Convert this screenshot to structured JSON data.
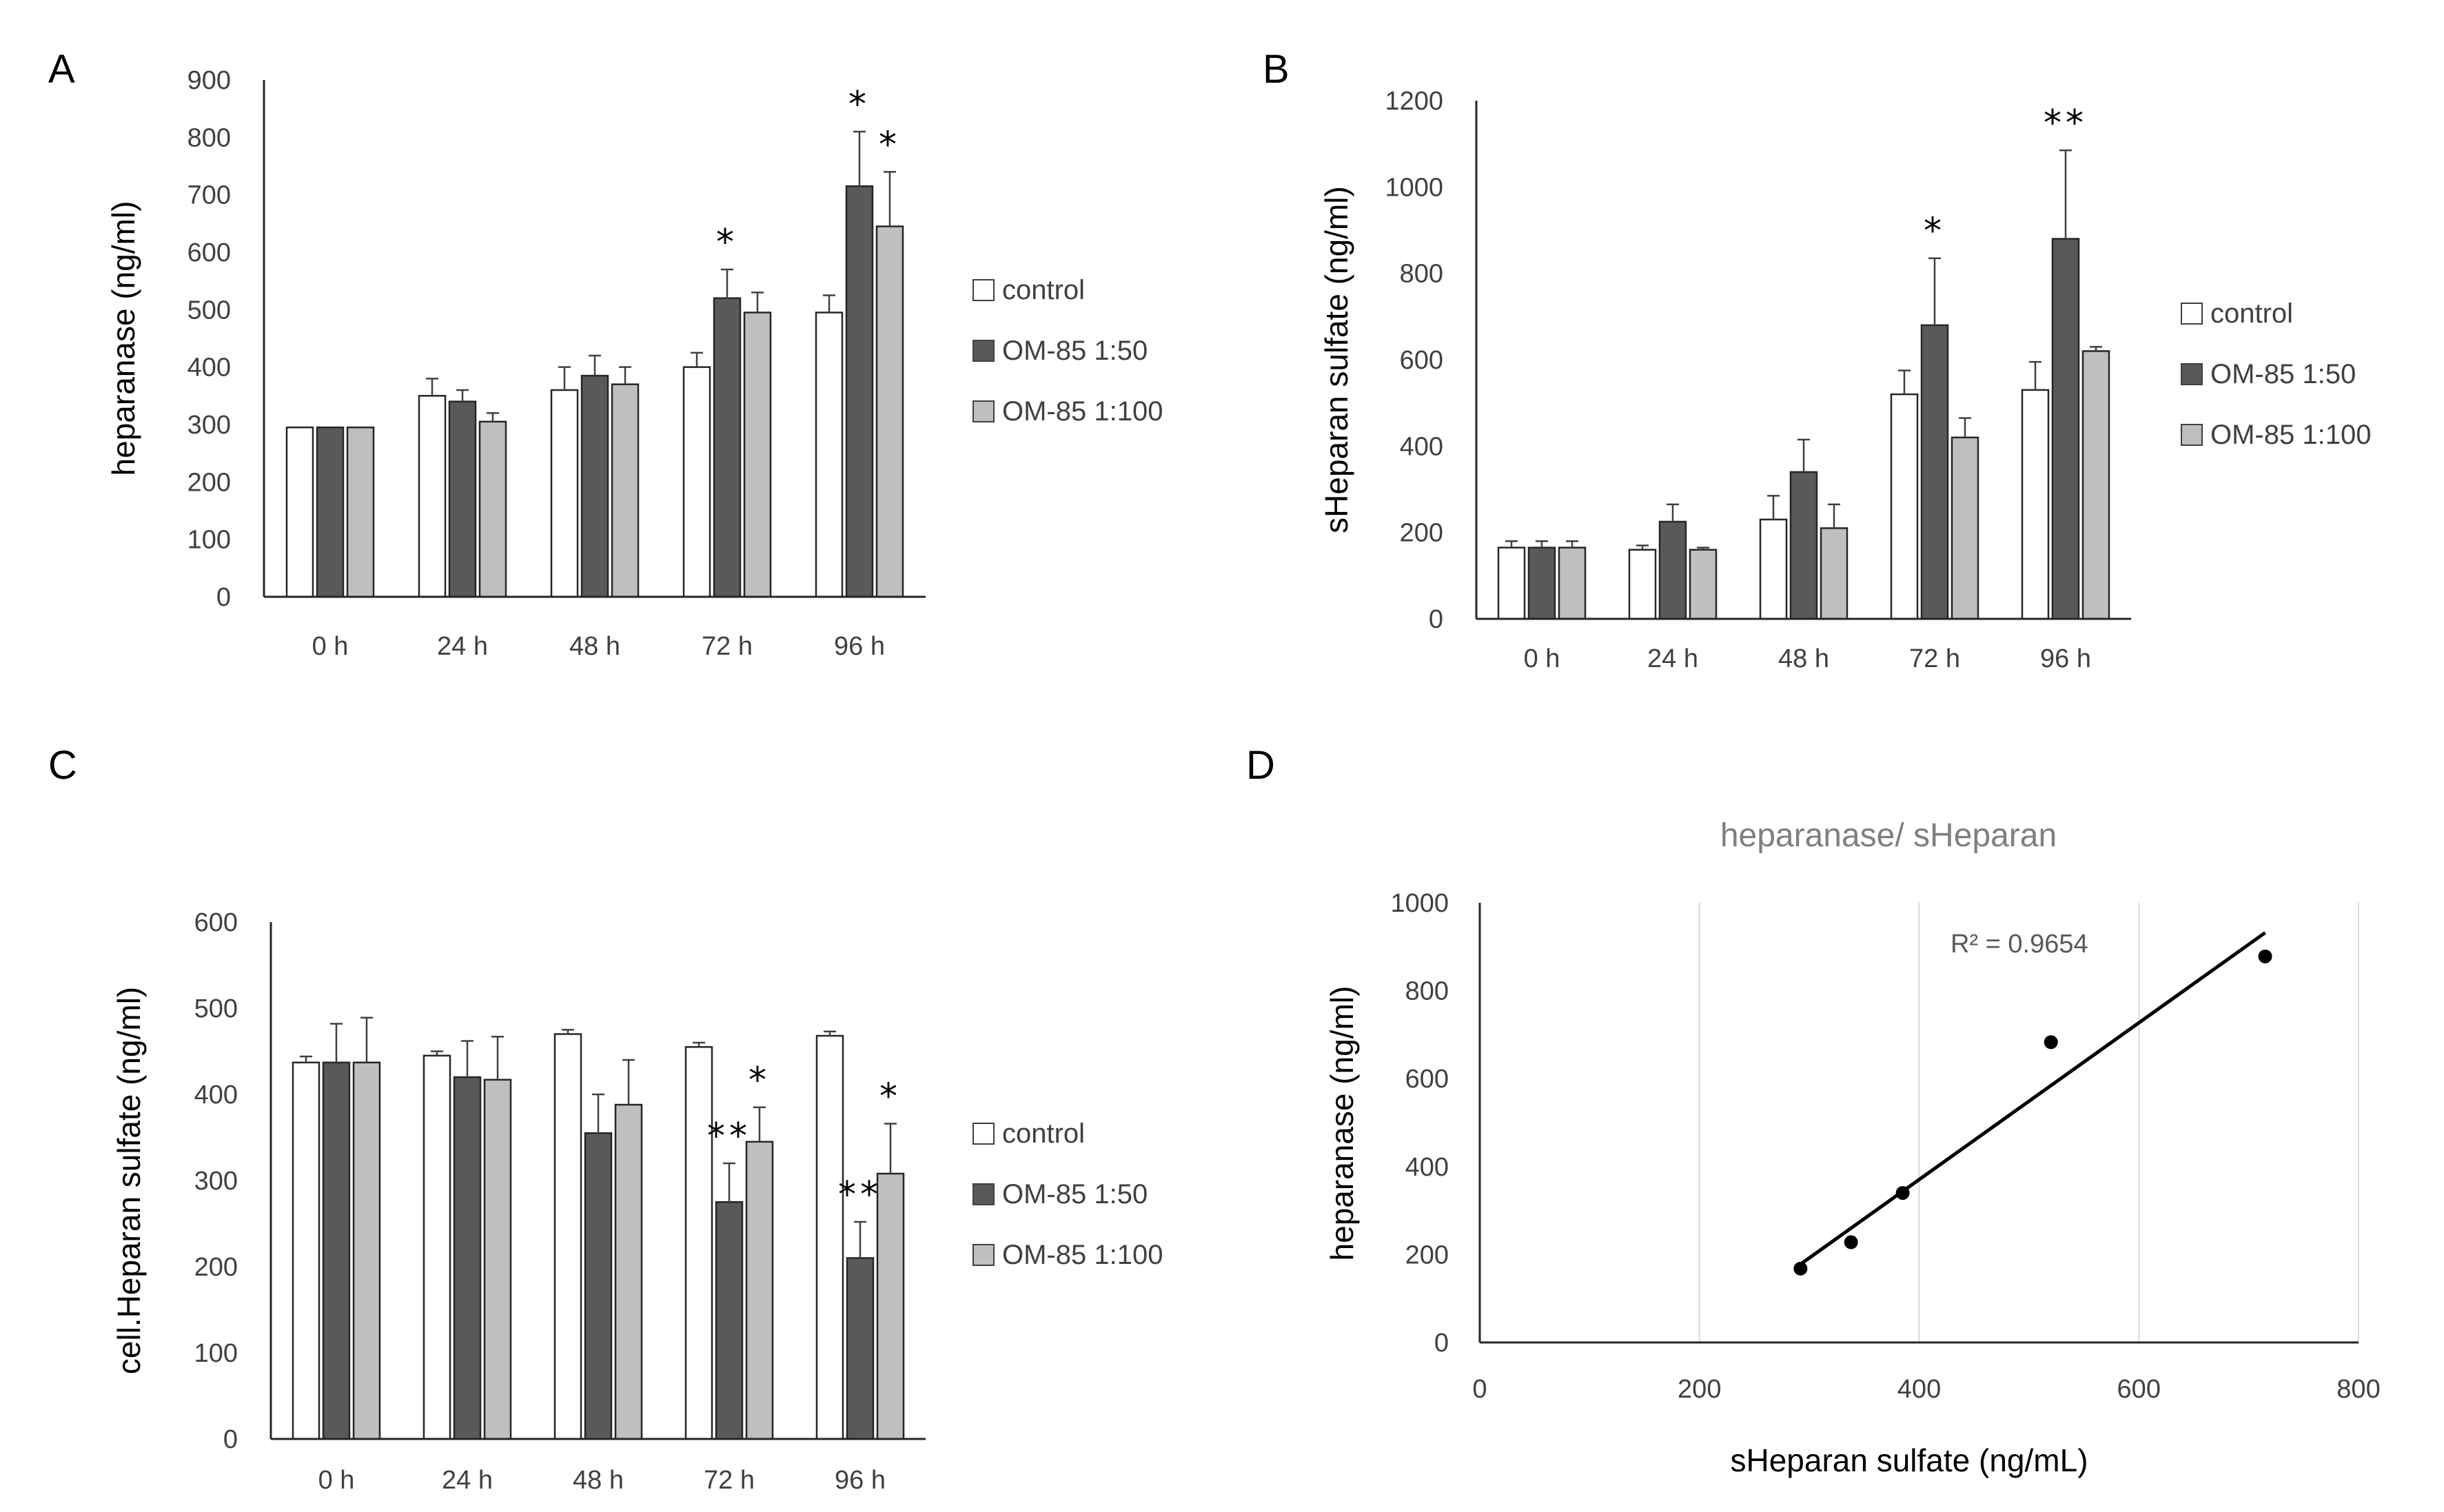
{
  "series_colors": {
    "control": "#ffffff",
    "OM-85 1:50": "#595959",
    "OM-85 1:100": "#bfbfbf"
  },
  "chart_data": [
    {
      "panel": "A",
      "type": "bar",
      "ylabel": "heparanase (ng/ml)",
      "categories": [
        "0 h",
        "24 h",
        "48 h",
        "72 h",
        "96 h"
      ],
      "ylim": [
        0,
        900
      ],
      "yticks": [
        0,
        100,
        200,
        300,
        400,
        500,
        600,
        700,
        800,
        900
      ],
      "legend_position": "right",
      "series": [
        {
          "name": "control",
          "values": [
            295,
            350,
            360,
            400,
            495
          ],
          "errors": [
            0,
            30,
            40,
            25,
            30
          ]
        },
        {
          "name": "OM-85 1:50",
          "values": [
            295,
            340,
            385,
            520,
            715
          ],
          "errors": [
            0,
            20,
            35,
            50,
            95
          ]
        },
        {
          "name": "OM-85 1:100",
          "values": [
            295,
            305,
            370,
            495,
            645
          ],
          "errors": [
            0,
            15,
            30,
            35,
            95
          ]
        }
      ],
      "annotations": [
        {
          "text": "*",
          "category": "72 h",
          "series": "OM-85 1:50"
        },
        {
          "text": "*",
          "category": "96 h",
          "series": "OM-85 1:50"
        },
        {
          "text": "*",
          "category": "96 h",
          "series": "OM-85 1:100"
        }
      ]
    },
    {
      "panel": "B",
      "type": "bar",
      "ylabel": "sHeparan sulfate (ng/ml)",
      "categories": [
        "0 h",
        "24 h",
        "48 h",
        "72 h",
        "96 h"
      ],
      "ylim": [
        0,
        1200
      ],
      "yticks": [
        0,
        200,
        400,
        600,
        800,
        1000,
        1200
      ],
      "legend_position": "right",
      "series": [
        {
          "name": "control",
          "values": [
            165,
            160,
            230,
            520,
            530
          ],
          "errors": [
            15,
            10,
            55,
            55,
            65
          ]
        },
        {
          "name": "OM-85 1:50",
          "values": [
            165,
            225,
            340,
            680,
            880
          ],
          "errors": [
            15,
            40,
            75,
            155,
            205
          ]
        },
        {
          "name": "OM-85 1:100",
          "values": [
            165,
            160,
            210,
            420,
            620
          ],
          "errors": [
            15,
            5,
            55,
            45,
            10
          ]
        }
      ],
      "annotations": [
        {
          "text": "*",
          "category": "72 h",
          "series": "OM-85 1:50"
        },
        {
          "text": "**",
          "category": "96 h",
          "series": "OM-85 1:50"
        }
      ]
    },
    {
      "panel": "C",
      "type": "bar",
      "ylabel": "cell.Heparan sulfate (ng/ml)",
      "categories": [
        "0 h",
        "24 h",
        "48 h",
        "72 h",
        "96 h"
      ],
      "ylim": [
        0,
        600
      ],
      "yticks": [
        0,
        100,
        200,
        300,
        400,
        500,
        600
      ],
      "legend_position": "right",
      "series": [
        {
          "name": "control",
          "values": [
            437,
            445,
            470,
            455,
            468
          ],
          "errors": [
            7,
            5,
            5,
            5,
            5
          ]
        },
        {
          "name": "OM-85 1:50",
          "values": [
            437,
            420,
            355,
            275,
            210
          ],
          "errors": [
            45,
            42,
            45,
            45,
            42
          ]
        },
        {
          "name": "OM-85 1:100",
          "values": [
            437,
            417,
            388,
            345,
            308
          ],
          "errors": [
            52,
            50,
            52,
            40,
            58
          ]
        }
      ],
      "annotations": [
        {
          "text": "**",
          "category": "72 h",
          "series": "OM-85 1:50"
        },
        {
          "text": "*",
          "category": "72 h",
          "series": "OM-85 1:100"
        },
        {
          "text": "**",
          "category": "96 h",
          "series": "OM-85 1:50"
        },
        {
          "text": "*",
          "category": "96 h",
          "series": "OM-85 1:100"
        }
      ]
    },
    {
      "panel": "D",
      "type": "scatter",
      "title": "heparanase/ sHeparan",
      "xlabel": "sHeparan sulfate (ng/mL)",
      "ylabel": "heparanase (ng/ml)",
      "xlim": [
        0,
        800
      ],
      "ylim": [
        0,
        1000
      ],
      "xticks": [
        0,
        200,
        400,
        600,
        800
      ],
      "yticks": [
        0,
        200,
        400,
        600,
        800,
        1000
      ],
      "points": [
        {
          "x": 292,
          "y": 168
        },
        {
          "x": 338,
          "y": 228
        },
        {
          "x": 385,
          "y": 340
        },
        {
          "x": 520,
          "y": 683
        },
        {
          "x": 715,
          "y": 878
        }
      ],
      "trendline": {
        "type": "linear",
        "x": [
          292,
          715
        ],
        "y": [
          178,
          932
        ]
      },
      "r2_label": "R² = 0.9654"
    }
  ]
}
